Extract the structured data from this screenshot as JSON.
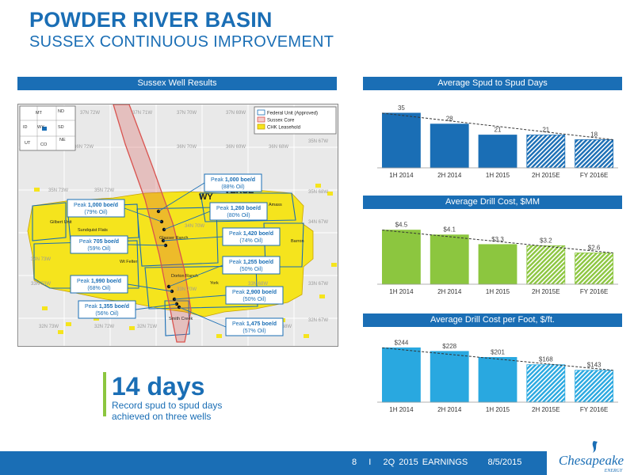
{
  "header": {
    "title": "POWDER RIVER BASIN",
    "subtitle": "SUSSEX CONTINUOUS IMPROVEMENT"
  },
  "panels": {
    "map_title": "Sussex Well Results",
    "spud_title": "Average Spud to Spud Days",
    "cost_title": "Average Drill Cost, $MM",
    "foot_title": "Average Drill Cost per Foot, $/ft."
  },
  "map": {
    "legend": [
      "Federal Unit (Approved)",
      "Sussex Core",
      "CHK Leasehold"
    ],
    "state_label": "WY",
    "states": [
      "MT",
      "ND",
      "SD",
      "ID",
      "WY",
      "NE",
      "UT",
      "CO"
    ],
    "fields": [
      "Gilbert Unit",
      "Sundquist Flats",
      "Glasser Ranch",
      "Wt Felter",
      "Dorton Ranch",
      "Smith Creek",
      "Amass",
      "Barron",
      "York",
      "VERSE"
    ],
    "townships": [
      "37N 72W",
      "37N 71W",
      "37N 70W",
      "37N 69W",
      "36N 72W",
      "36N 70W",
      "36N 69W",
      "36N 68W",
      "35N 73W",
      "35N 72W",
      "34N 73W",
      "34N 70W",
      "33N 73W",
      "32N 73W",
      "32N 72W",
      "32N 71W",
      "33N 67W",
      "32N 67W",
      "33N 68W",
      "35N 67W",
      "36N 67W",
      "35N 68W",
      "33N 70W",
      "32N 68W",
      "34N 67W"
    ],
    "callouts": [
      {
        "peak": "1,000 boe/d",
        "oil": "(88% Oil)"
      },
      {
        "peak": "1,000 boe/d",
        "oil": "(79% Oil)"
      },
      {
        "peak": "1,260 boe/d",
        "oil": "(80% Oil)"
      },
      {
        "peak": "1,420 boe/d",
        "oil": "(74% Oil)"
      },
      {
        "peak": "705 boe/d",
        "oil": "(59% Oil)"
      },
      {
        "peak": "1,255 boe/d",
        "oil": "(50% Oil)"
      },
      {
        "peak": "1,990 boe/d",
        "oil": "(68% Oil)"
      },
      {
        "peak": "2,900 boe/d",
        "oil": "(50% Oil)"
      },
      {
        "peak": "1,355 boe/d",
        "oil": "(56% Oil)"
      },
      {
        "peak": "1,475 boe/d",
        "oil": "(57% Oil)"
      }
    ],
    "peak_prefix": "Peak "
  },
  "chart_data": [
    {
      "type": "bar",
      "title": "Average Spud to Spud Days",
      "categories": [
        "1H 2014",
        "2H 2014",
        "1H 2015",
        "2H 2015E",
        "FY 2016E"
      ],
      "values": [
        35,
        28,
        21,
        21,
        18
      ],
      "labels": [
        "35",
        "28",
        "21",
        "21",
        "18"
      ],
      "estimated": [
        false,
        false,
        false,
        true,
        true
      ],
      "trendline": "dashed",
      "ylim": [
        0,
        40
      ],
      "color": "#1a6eb5"
    },
    {
      "type": "bar",
      "title": "Average Drill Cost, $MM",
      "categories": [
        "1H 2014",
        "2H 2014",
        "1H 2015",
        "2H 2015E",
        "FY 2016E"
      ],
      "values": [
        4.5,
        4.1,
        3.3,
        3.2,
        2.6
      ],
      "labels": [
        "$4.5",
        "$4.1",
        "$3.3",
        "$3.2",
        "$2.6"
      ],
      "estimated": [
        false,
        false,
        false,
        true,
        true
      ],
      "trendline": "dashed",
      "ylim": [
        0,
        5
      ],
      "color": "#8cc63f"
    },
    {
      "type": "bar",
      "title": "Average Drill Cost per Foot, $/ft.",
      "categories": [
        "1H 2014",
        "2H 2014",
        "1H 2015",
        "2H 2015E",
        "FY 2016E"
      ],
      "values": [
        244,
        228,
        201,
        168,
        143
      ],
      "labels": [
        "$244",
        "$228",
        "$201",
        "$168",
        "$143"
      ],
      "estimated": [
        false,
        false,
        false,
        true,
        true
      ],
      "trendline": "dashed",
      "ylim": [
        0,
        270
      ],
      "color": "#29a8e0"
    }
  ],
  "callout": {
    "big": "14 days",
    "line1": "Record spud to spud days",
    "line2": "achieved on three wells"
  },
  "footer": {
    "text": "8   I   2Q 2015 EARNINGS     8/5/2015",
    "logo_name": "Chesapeake",
    "logo_sub": "ENERGY"
  },
  "colors": {
    "brand_blue": "#1a6eb5",
    "green": "#8cc63f",
    "light_blue": "#29a8e0",
    "leasehold_yellow": "#f5e41d",
    "core_red": "#d9534f"
  }
}
